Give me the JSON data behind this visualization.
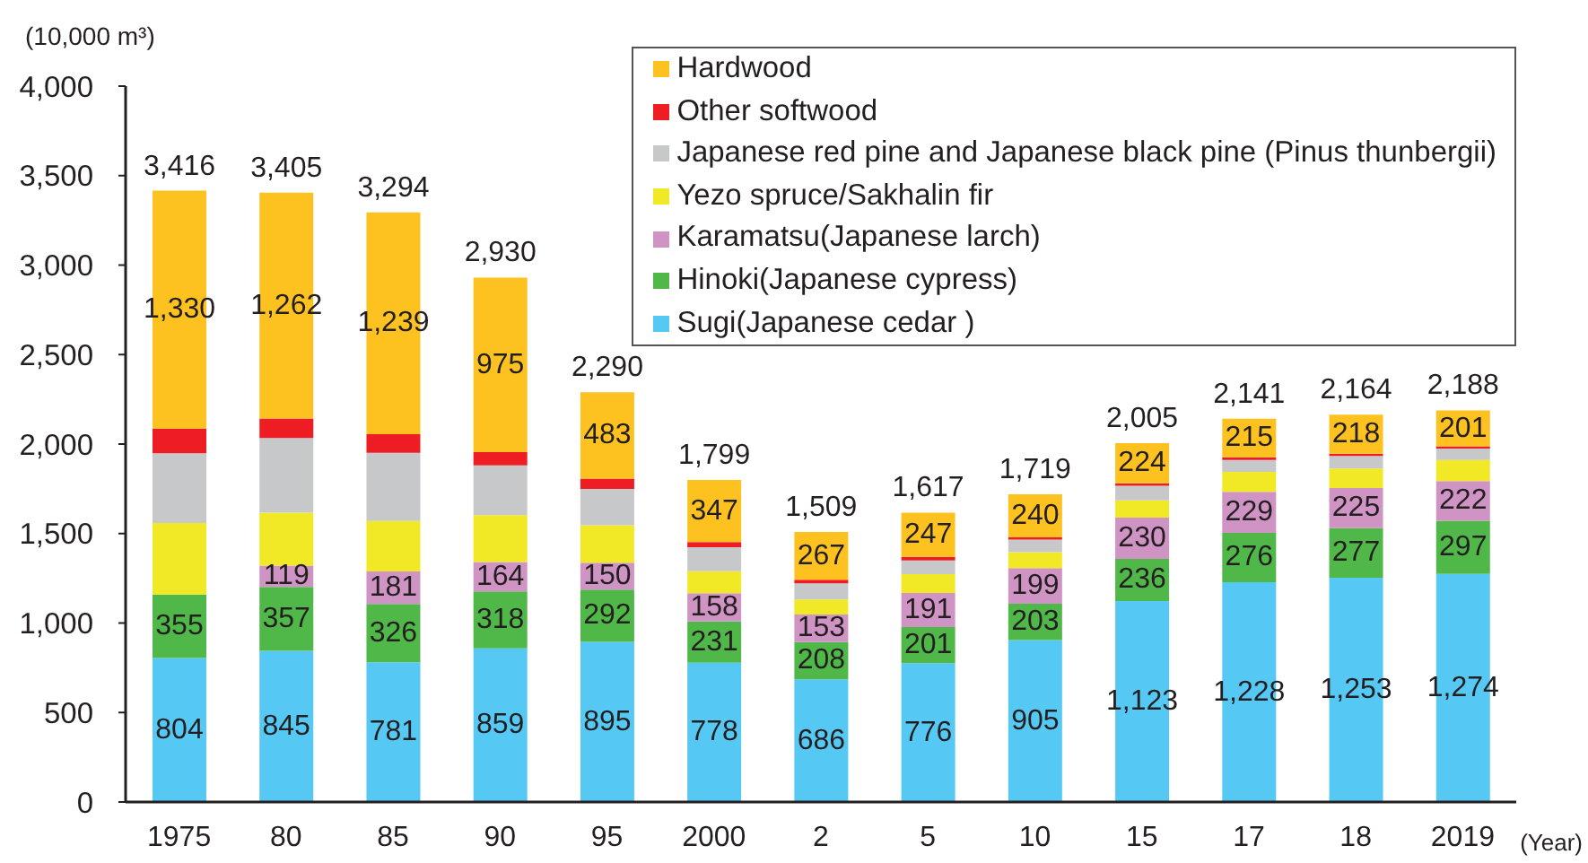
{
  "chart_data": {
    "type": "bar",
    "stacked": true,
    "categories": [
      "1975",
      "80",
      "85",
      "90",
      "95",
      "2000",
      "2",
      "5",
      "10",
      "15",
      "17",
      "18",
      "2019"
    ],
    "series": [
      {
        "name": "Sugi(Japanese cedar )",
        "color": "#56c8f4",
        "values": [
          804,
          845,
          781,
          859,
          895,
          778,
          686,
          776,
          905,
          1123,
          1228,
          1253,
          1274
        ],
        "value_labels": [
          "804",
          "845",
          "781",
          "859",
          "895",
          "778",
          "686",
          "776",
          "905",
          "1,123",
          "1,228",
          "1,253",
          "1,274"
        ]
      },
      {
        "name": "Hinoki(Japanese cypress)",
        "color": "#50b848",
        "values": [
          355,
          357,
          326,
          318,
          292,
          231,
          208,
          201,
          203,
          236,
          276,
          277,
          297
        ],
        "value_labels": [
          "355",
          "357",
          "326",
          "318",
          "292",
          "231",
          "208",
          "201",
          "203",
          "236",
          "276",
          "277",
          "297"
        ]
      },
      {
        "name": "Karamatsu(Japanese larch)",
        "color": "#cf94c4",
        "values": [
          null,
          119,
          181,
          164,
          150,
          158,
          153,
          191,
          199,
          230,
          229,
          225,
          222
        ],
        "value_labels": [
          null,
          "119",
          "181",
          "164",
          "150",
          "158",
          "153",
          "191",
          "199",
          "230",
          "229",
          "225",
          "222"
        ]
      },
      {
        "name": "Yezo spruce/Sakhalin fir",
        "color": "#f1e925",
        "values": [
          400,
          295,
          282,
          262,
          209,
          123,
          85,
          105,
          89,
          97,
          111,
          109,
          118
        ]
      },
      {
        "name": "Japanese red pine and Japanese black pine (Pinus thunbergii)",
        "color": "#c7c8ca",
        "values": [
          390,
          418,
          381,
          278,
          204,
          133,
          90,
          77,
          70,
          81,
          67,
          70,
          64
        ]
      },
      {
        "name": "Other softwood",
        "color": "#ee1d24",
        "values": [
          137,
          109,
          104,
          74,
          57,
          29,
          20,
          20,
          13,
          14,
          15,
          12,
          12
        ]
      },
      {
        "name": "Hardwood",
        "color": "#fdc220",
        "values": [
          1330,
          1262,
          1239,
          975,
          483,
          347,
          267,
          247,
          240,
          224,
          215,
          218,
          201
        ],
        "value_labels": [
          "1,330",
          "1,262",
          "1,239",
          "975",
          "483",
          "347",
          "267",
          "247",
          "240",
          "224",
          "215",
          "218",
          "201"
        ]
      }
    ],
    "totals": [
      "3,416",
      "3,405",
      "3,294",
      "2,930",
      "2,290",
      "1,799",
      "1,509",
      "1,617",
      "1,719",
      "2,005",
      "2,141",
      "2,164",
      "2,188"
    ],
    "ylim": [
      0,
      4000
    ],
    "yticks": [
      0,
      500,
      {
        "value": 1000,
        "label": "1,000"
      },
      {
        "value": 1500,
        "label": "1,500"
      },
      {
        "value": 2000,
        "label": "2,000"
      },
      {
        "value": 2500,
        "label": "2,500"
      },
      {
        "value": 3000,
        "label": "3,000"
      },
      {
        "value": 3500,
        "label": "3,500"
      },
      {
        "value": 4000,
        "label": "4,000"
      }
    ],
    "ylabel": "(10,000 m³)",
    "xlabel": "(Year)",
    "legend": "top right",
    "grid": false
  }
}
